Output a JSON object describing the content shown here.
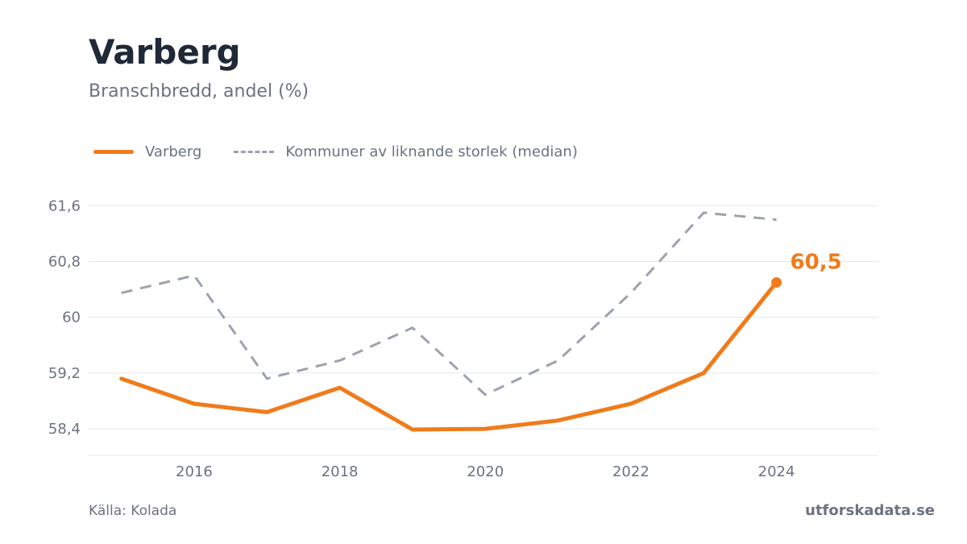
{
  "header": {
    "title": "Varberg",
    "subtitle": "Branschbredd, andel (%)"
  },
  "footer": {
    "source": "Källa: Kolada",
    "brand": "utforskadata.se"
  },
  "colors": {
    "primary": "#f07b1a",
    "median": "#9ca3af",
    "grid": "#e5e7eb",
    "text": "#6b7280",
    "title": "#1f2937"
  },
  "chart_data": {
    "type": "line",
    "title": "Varberg",
    "subtitle": "Branschbredd, andel (%)",
    "xlabel": "",
    "ylabel": "",
    "x": [
      2015,
      2016,
      2017,
      2018,
      2019,
      2020,
      2021,
      2022,
      2023,
      2024
    ],
    "xticks": [
      2016,
      2018,
      2020,
      2022,
      2024
    ],
    "xlim": [
      2014.55,
      2025.4
    ],
    "yticks": [
      58.4,
      59.2,
      60,
      60.8,
      61.6
    ],
    "ytick_labels": [
      "58,4",
      "59,2",
      "60",
      "60,8",
      "61,6"
    ],
    "ylim": [
      58.02,
      61.95
    ],
    "grid": true,
    "legend_position": "top-left",
    "series": [
      {
        "name": "Varberg",
        "style": "solid",
        "color": "#f07b1a",
        "values": [
          59.12,
          58.76,
          58.64,
          58.99,
          58.39,
          58.4,
          58.52,
          58.76,
          59.2,
          60.5
        ]
      },
      {
        "name": "Kommuner av liknande storlek (median)",
        "style": "dashed",
        "color": "#9ca3af",
        "values": [
          60.35,
          60.6,
          59.12,
          59.38,
          59.85,
          58.89,
          59.38,
          60.35,
          61.5,
          61.4
        ]
      }
    ],
    "end_label": "60,5"
  }
}
